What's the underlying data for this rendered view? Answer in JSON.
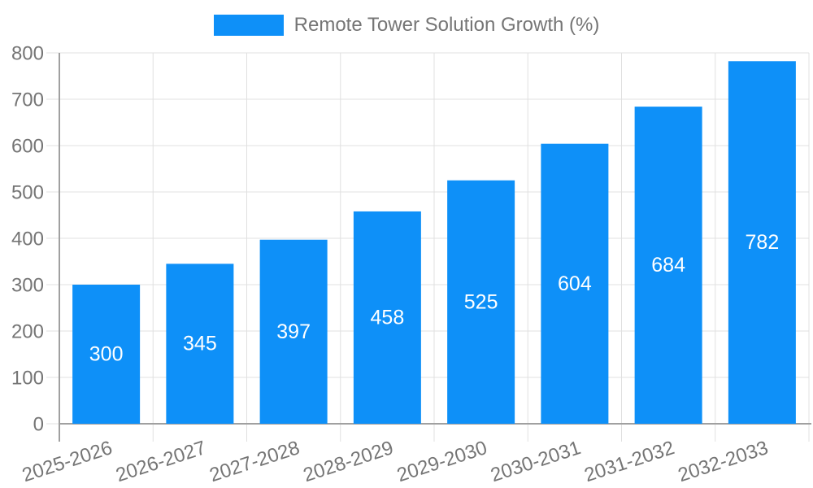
{
  "legend": {
    "label": "Remote Tower Solution Growth (%)"
  },
  "chart_data": {
    "type": "bar",
    "title": "Remote Tower Solution Growth (%)",
    "categories": [
      "2025-2026",
      "2026-2027",
      "2027-2028",
      "2028-2029",
      "2029-2030",
      "2030-2031",
      "2031-2032",
      "2032-2033"
    ],
    "values": [
      300,
      345,
      397,
      458,
      525,
      604,
      684,
      782
    ],
    "xlabel": "",
    "ylabel": "",
    "ylim": [
      0,
      800
    ],
    "ytick_interval": 100,
    "ytick_labels": [
      "0",
      "100",
      "200",
      "300",
      "400",
      "500",
      "600",
      "700",
      "800"
    ],
    "grid": true,
    "legend_position": "top",
    "bar_color": "#0e90f8",
    "value_label_color": "#ffffff",
    "axis_text_color": "#757575",
    "gridline_color": "#e0e0e0",
    "axis_line_color": "#a0a0a0"
  }
}
